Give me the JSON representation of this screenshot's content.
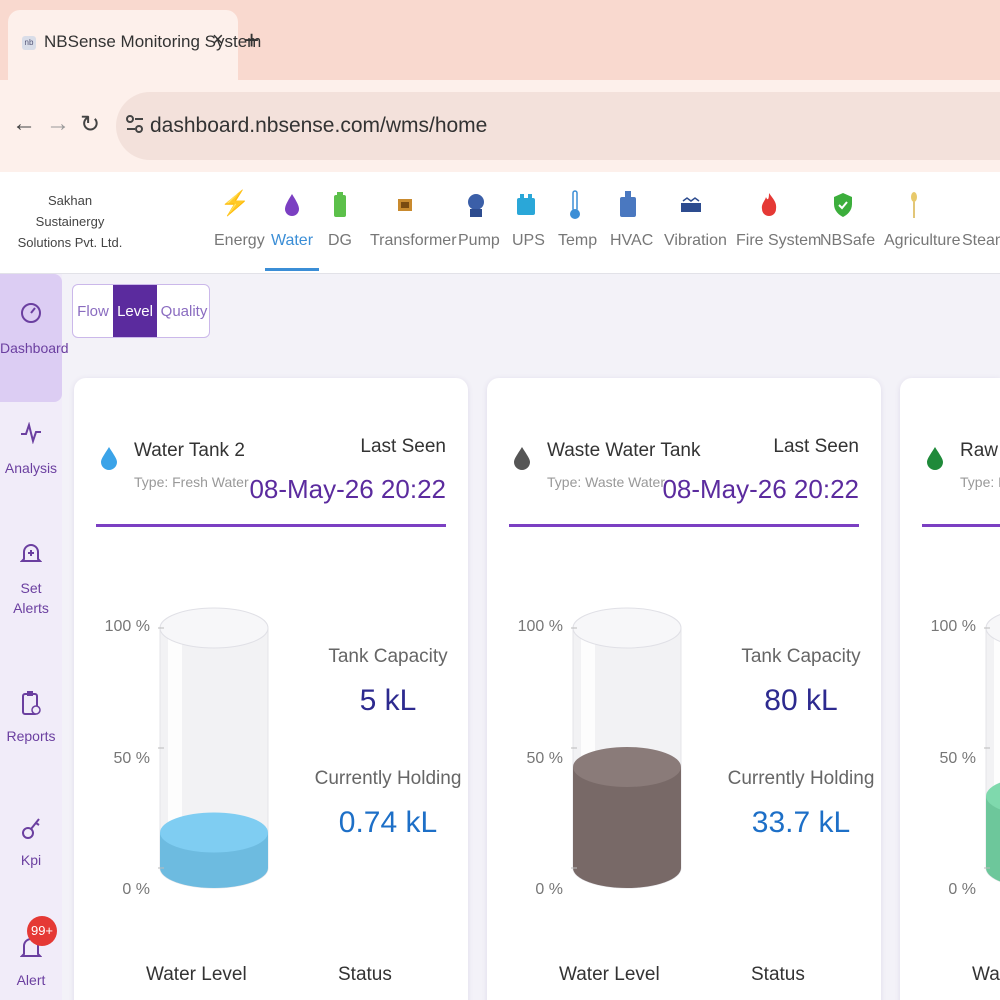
{
  "browser": {
    "tab_title": "NBSense Monitoring System",
    "tab_close": "×",
    "new_tab": "+",
    "url": "dashboard.nbsense.com/wms/home"
  },
  "header": {
    "company_line1": "Sakhan",
    "company_line2": "Sustainergy",
    "company_line3": "Solutions Pvt. Ltd.",
    "categories": [
      {
        "label": "Energy",
        "icon": "lightning-icon",
        "color": "#f4b400"
      },
      {
        "label": "Water",
        "icon": "water-drop-icon",
        "color": "#7b3fc2"
      },
      {
        "label": "DG",
        "icon": "battery-icon",
        "color": "#5cc04a"
      },
      {
        "label": "Transformer",
        "icon": "transformer-icon",
        "color": "#c98a2e"
      },
      {
        "label": "Pump",
        "icon": "pump-icon",
        "color": "#3b5fa8"
      },
      {
        "label": "UPS",
        "icon": "ups-icon",
        "color": "#2aa7d8"
      },
      {
        "label": "Temp",
        "icon": "thermometer-icon",
        "color": "#3b8ed6"
      },
      {
        "label": "HVAC",
        "icon": "hvac-icon",
        "color": "#4a78c0"
      },
      {
        "label": "Vibration",
        "icon": "vibration-icon",
        "color": "#2d4c8f"
      },
      {
        "label": "Fire System",
        "icon": "fire-icon",
        "color": "#e53935"
      },
      {
        "label": "NBSafe",
        "icon": "shield-icon",
        "color": "#3cae3c"
      },
      {
        "label": "Agriculture",
        "icon": "wheat-icon",
        "color": "#d9b24a"
      },
      {
        "label": "Steam",
        "icon": "steam-icon",
        "color": "#888888"
      }
    ],
    "active_category": "Water"
  },
  "sidebar": {
    "items": [
      {
        "label1": "Dashboard",
        "label2": "",
        "icon": "gauge-icon"
      },
      {
        "label1": "Analysis",
        "label2": "",
        "icon": "pulse-icon"
      },
      {
        "label1": "Set",
        "label2": "Alerts",
        "icon": "bell-plus-icon"
      },
      {
        "label1": "Reports",
        "label2": "",
        "icon": "clipboard-icon"
      },
      {
        "label1": "Kpi",
        "label2": "",
        "icon": "key-icon"
      },
      {
        "label1": "Alert",
        "label2": "",
        "icon": "bell-icon"
      }
    ],
    "alert_badge": "99+"
  },
  "toggle": {
    "options": [
      "Flow",
      "Level",
      "Quality"
    ],
    "active": "Level"
  },
  "axis": {
    "top": "100 %",
    "mid": "50 %",
    "bottom": "0 %"
  },
  "labels": {
    "last_seen": "Last Seen",
    "tank_capacity": "Tank Capacity",
    "currently_holding": "Currently Holding",
    "water_level": "Water Level",
    "status": "Status"
  },
  "tanks": [
    {
      "name": "Water Tank 2",
      "type": "Type: Fresh Water",
      "last_seen": "08-May-26 20:22",
      "capacity": "5 kL",
      "holding": "0.74 kL",
      "fill_fraction": 0.148,
      "drop_color": "#3ba3e8",
      "liquid_color": "#7fcdf2"
    },
    {
      "name": "Waste Water Tank",
      "type": "Type: Waste Water",
      "last_seen": "08-May-26 20:22",
      "capacity": "80 kL",
      "holding": "33.7 kL",
      "fill_fraction": 0.421,
      "drop_color": "#555555",
      "liquid_color": "#8a7b79"
    },
    {
      "name": "Raw W",
      "type": "Type: Ra",
      "last_seen": "",
      "capacity": "",
      "holding": "",
      "fill_fraction": 0.3,
      "drop_color": "#1f8a3a",
      "liquid_color": "#7fd9ad"
    }
  ]
}
